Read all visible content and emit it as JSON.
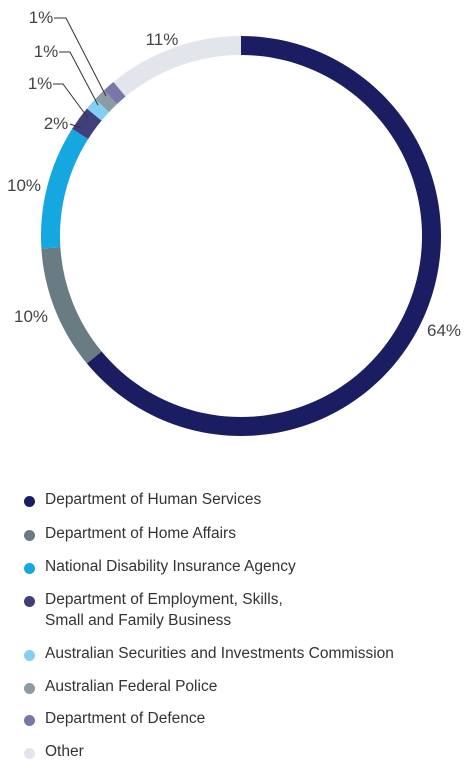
{
  "chart_data": {
    "type": "pie",
    "style": "donut",
    "slices": [
      {
        "label": "Department of Human Services",
        "value": 64,
        "display": "64%",
        "color": "#1b1d63"
      },
      {
        "label": "Department of Home Affairs",
        "value": 10,
        "display": "10%",
        "color": "#697b83"
      },
      {
        "label": "National Disability Insurance Agency",
        "value": 10,
        "display": "10%",
        "color": "#15a7e0"
      },
      {
        "label": "Department of Employment, Skills, Small and Family Business",
        "value": 2,
        "display": "2%",
        "color": "#413e7c"
      },
      {
        "label": "Australian Securities and Investments Commission",
        "value": 1,
        "display": "1%",
        "color": "#82cff1"
      },
      {
        "label": "Australian Federal Police",
        "value": 1,
        "display": "1%",
        "color": "#8c9ca4"
      },
      {
        "label": "Department of Defence",
        "value": 1,
        "display": "1%",
        "color": "#7777a9"
      },
      {
        "label": "Other",
        "value": 11,
        "display": "11%",
        "color": "#e2e6ec"
      }
    ],
    "legend": {
      "position": "bottom",
      "items": [
        {
          "label": "Department of Human Services",
          "lines": [
            "Department of Human Services"
          ],
          "color": "#1b1d63"
        },
        {
          "label": "Department of Home Affairs",
          "lines": [
            "Department of Home Affairs"
          ],
          "color": "#697b83"
        },
        {
          "label": "National Disability Insurance Agency",
          "lines": [
            "National Disability Insurance Agency"
          ],
          "color": "#15a7e0"
        },
        {
          "label": "Department of Employment, Skills, Small and Family Business",
          "lines": [
            "Department of Employment, Skills,",
            "Small and Family Business"
          ],
          "color": "#413e7c"
        },
        {
          "label": "Australian Securities and Investments Commission",
          "lines": [
            "Australian Securities and Investments Commission"
          ],
          "color": "#82cff1"
        },
        {
          "label": "Australian Federal Police",
          "lines": [
            "Australian Federal Police"
          ],
          "color": "#8c9ca4"
        },
        {
          "label": "Department of Defence",
          "lines": [
            "Department of Defence"
          ],
          "color": "#7777a9"
        },
        {
          "label": "Other",
          "lines": [
            "Other"
          ],
          "color": "#e2e6ec"
        }
      ]
    }
  }
}
